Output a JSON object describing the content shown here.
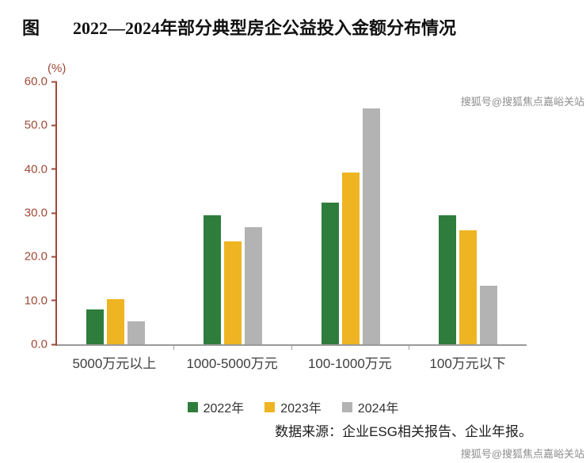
{
  "header": {
    "prefix": "图",
    "title": "2022—2024年部分典型房企公益投入金额分布情况"
  },
  "chart_data": {
    "type": "bar",
    "title": "2022—2024年部分典型房企公益投入金额分布情况",
    "unit_label": "(%)",
    "categories": [
      "5000万元以上",
      "1000-5000万元",
      "100-1000万元",
      "100万元以下"
    ],
    "series": [
      {
        "name": "2022年",
        "color": "#2e7d3c",
        "values": [
          7.9,
          29.5,
          32.3,
          29.5
        ]
      },
      {
        "name": "2023年",
        "color": "#eeb422",
        "values": [
          10.3,
          23.5,
          39.3,
          26.1
        ]
      },
      {
        "name": "2024年",
        "color": "#b3b3b3",
        "values": [
          5.3,
          26.7,
          53.9,
          13.3
        ]
      }
    ],
    "ylim": [
      0,
      60
    ],
    "yticks": [
      "60.0",
      "50.0",
      "40.0",
      "30.0",
      "20.0",
      "10.0",
      "0.0"
    ],
    "grid": false,
    "legend_position": "bottom"
  },
  "source": "数据来源：企业ESG相关报告、企业年报。",
  "watermark": "搜狐号@搜狐焦点嘉峪关站",
  "colors": {
    "axis_text": "#9c4a38",
    "axis_line": "#9a9a9a",
    "series_2022": "#2e7d3c",
    "series_2023": "#eeb422",
    "series_2024": "#b3b3b3"
  }
}
